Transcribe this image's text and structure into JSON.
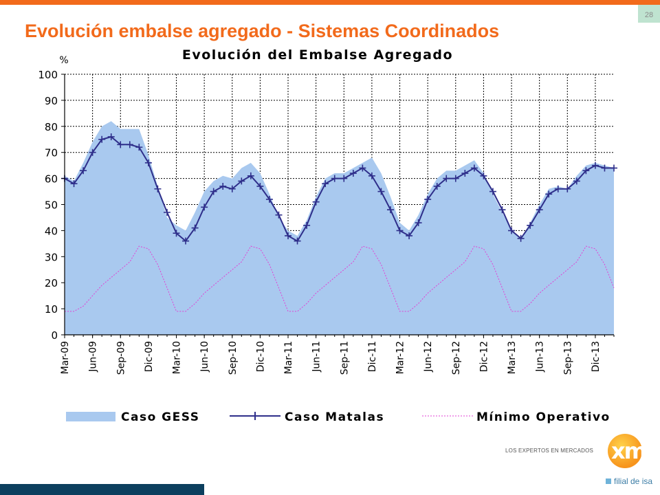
{
  "slide": {
    "page_number": "28",
    "title": "Evolución embalse agregado - Sistemas Coordinados"
  },
  "logo": {
    "tagline": "LOS EXPERTOS EN MERCADOS",
    "mark": "xm",
    "subtitle": "filial de isa"
  },
  "colors": {
    "accent": "#f26a1b",
    "gess_fill": "#a9c9ef",
    "matalas_line": "#2e2e8a",
    "minimo_line": "#e23fd4",
    "bottom_bar": "#0c3f5e"
  },
  "chart_data": {
    "type": "area",
    "title": "Evolución del Embalse Agregado",
    "ylabel": "%",
    "xlabel": "",
    "ylim": [
      0,
      100
    ],
    "yticks": [
      0,
      10,
      20,
      30,
      40,
      50,
      60,
      70,
      80,
      90,
      100
    ],
    "grid": true,
    "legend_position": "bottom",
    "x": [
      "Mar-09",
      "Abr-09",
      "May-09",
      "Jun-09",
      "Jul-09",
      "Ago-09",
      "Sep-09",
      "Oct-09",
      "Nov-09",
      "Dic-09",
      "Ene-10",
      "Feb-10",
      "Mar-10",
      "Abr-10",
      "May-10",
      "Jun-10",
      "Jul-10",
      "Ago-10",
      "Sep-10",
      "Oct-10",
      "Nov-10",
      "Dic-10",
      "Ene-11",
      "Feb-11",
      "Mar-11",
      "Abr-11",
      "May-11",
      "Jun-11",
      "Jul-11",
      "Ago-11",
      "Sep-11",
      "Oct-11",
      "Nov-11",
      "Dic-11",
      "Ene-12",
      "Feb-12",
      "Mar-12",
      "Abr-12",
      "May-12",
      "Jun-12",
      "Jul-12",
      "Ago-12",
      "Sep-12",
      "Oct-12",
      "Nov-12",
      "Dic-12",
      "Ene-13",
      "Feb-13",
      "Mar-13",
      "Abr-13",
      "May-13",
      "Jun-13",
      "Jul-13",
      "Ago-13",
      "Sep-13",
      "Oct-13",
      "Nov-13",
      "Dic-13",
      "Ene-14",
      "Feb-14"
    ],
    "x_tick_labels": [
      "Mar-09",
      "Jun-09",
      "Sep-09",
      "Dic-09",
      "Mar-10",
      "Jun-10",
      "Sep-10",
      "Dic-10",
      "Mar-11",
      "Jun-11",
      "Sep-11",
      "Dic-11",
      "Mar-12",
      "Jun-12",
      "Sep-12",
      "Dic-12",
      "Mar-13",
      "Jun-13",
      "Sep-13",
      "Dic-13"
    ],
    "series": [
      {
        "name": "Caso GESS",
        "style": "area",
        "values": [
          61,
          59,
          66,
          74,
          80,
          82,
          79,
          79,
          79,
          69,
          57,
          45,
          42,
          40,
          47,
          55,
          59,
          61,
          60,
          64,
          66,
          62,
          54,
          45,
          40,
          38,
          44,
          53,
          60,
          62,
          62,
          64,
          66,
          68,
          62,
          53,
          43,
          40,
          46,
          54,
          60,
          63,
          63,
          65,
          67,
          62,
          54,
          47,
          40,
          37,
          43,
          50,
          56,
          57,
          56,
          61,
          65,
          66,
          65,
          64
        ]
      },
      {
        "name": "Caso Matalas",
        "style": "line-markers",
        "values": [
          60,
          58,
          63,
          70,
          75,
          76,
          73,
          73,
          72,
          66,
          56,
          47,
          39,
          36,
          41,
          49,
          55,
          57,
          56,
          59,
          61,
          57,
          52,
          46,
          38,
          36,
          42,
          51,
          58,
          60,
          60,
          62,
          64,
          61,
          55,
          48,
          40,
          38,
          43,
          52,
          57,
          60,
          60,
          62,
          64,
          61,
          55,
          48,
          40,
          37,
          42,
          48,
          54,
          56,
          56,
          59,
          63,
          65,
          64,
          64
        ]
      },
      {
        "name": "Mínimo Operativo",
        "style": "dashed",
        "values": [
          9,
          9,
          11,
          15,
          19,
          22,
          25,
          28,
          34,
          33,
          27,
          18,
          9,
          9,
          12,
          16,
          19,
          22,
          25,
          28,
          34,
          33,
          27,
          18,
          9,
          9,
          12,
          16,
          19,
          22,
          25,
          28,
          34,
          33,
          27,
          18,
          9,
          9,
          12,
          16,
          19,
          22,
          25,
          28,
          34,
          33,
          27,
          18,
          9,
          9,
          12,
          16,
          19,
          22,
          25,
          28,
          34,
          33,
          27,
          18
        ]
      }
    ]
  }
}
